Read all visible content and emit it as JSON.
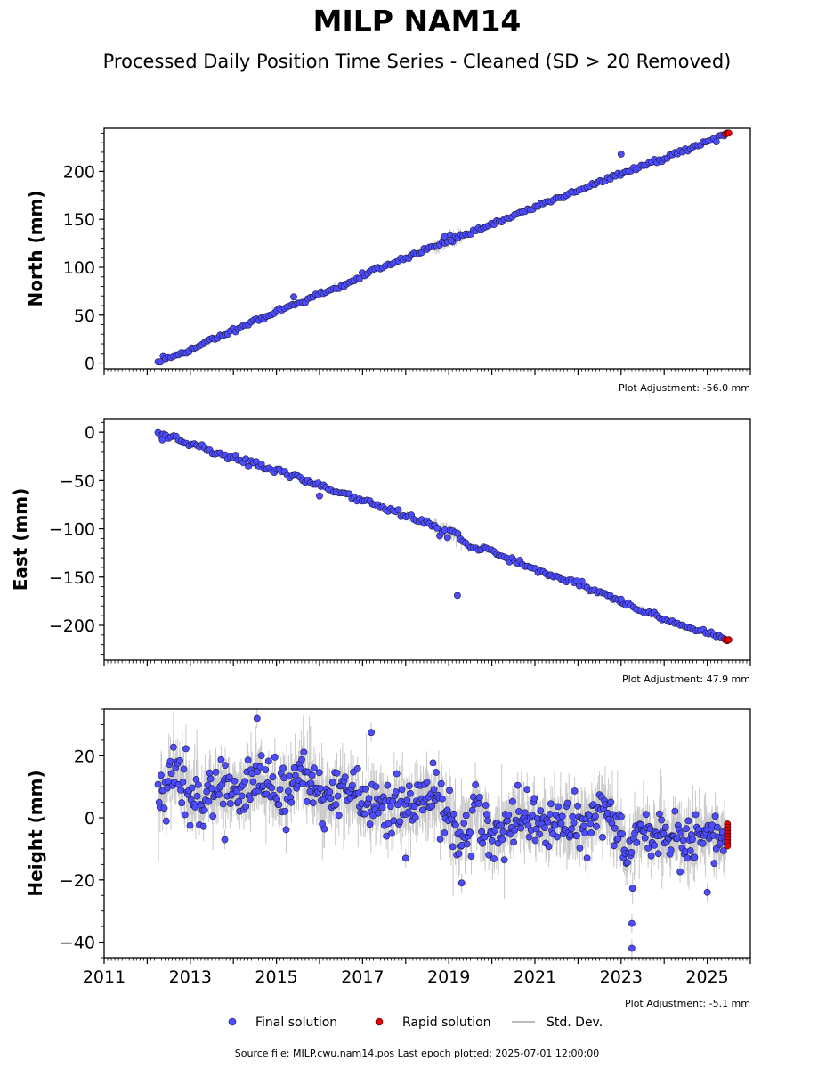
{
  "title": "MILP NAM14",
  "subtitle": "Processed Daily Position Time Series - Cleaned (SD > 20 Removed)",
  "footer": "Source file: MILP.cwu.nam14.pos  Last epoch plotted: 2025-07-01 12:00:00",
  "colors": {
    "final": "#4d4dff",
    "final_edge": "#1a1a40",
    "rapid": "#e60000",
    "sd": "#9a9a9a"
  },
  "legend": [
    {
      "label": "Final solution",
      "marker": "dot",
      "color": "#4d4dff"
    },
    {
      "label": "Rapid solution",
      "marker": "dot",
      "color": "#e60000"
    },
    {
      "label": "Std. Dev.",
      "marker": "line",
      "color": "#bbbbbb"
    }
  ],
  "chart_data": [
    {
      "type": "scatter",
      "ylabel": "North (mm)",
      "adjustment": "Plot Adjustment: -56.0 mm",
      "xlim": [
        2011.0,
        2026.0
      ],
      "ylim": [
        -6,
        245
      ],
      "yticks": [
        0,
        50,
        100,
        150,
        200
      ],
      "start": 2012.25,
      "end": 2025.5,
      "series": [
        {
          "label": "Final solution",
          "trend": [
            [
              2012.25,
              0
            ],
            [
              2014.0,
              34
            ],
            [
              2016.0,
              72
            ],
            [
              2018.0,
              110
            ],
            [
              2020.0,
              145
            ],
            [
              2022.0,
              180
            ],
            [
              2024.0,
              214
            ],
            [
              2025.4,
              238
            ]
          ],
          "scatter_sd": 1.3,
          "outliers": [
            [
              2023.0,
              218
            ],
            [
              2015.4,
              69
            ],
            [
              2018.9,
              132
            ],
            [
              2019.05,
              128
            ]
          ]
        },
        {
          "label": "Rapid solution",
          "points": [
            [
              2025.42,
              239
            ],
            [
              2025.46,
              240
            ],
            [
              2025.5,
              240
            ]
          ]
        }
      ]
    },
    {
      "type": "scatter",
      "ylabel": "East (mm)",
      "adjustment": "Plot Adjustment: 47.9 mm",
      "xlim": [
        2011.0,
        2026.0
      ],
      "ylim": [
        -236,
        14
      ],
      "yticks": [
        0,
        -50,
        -100,
        -150,
        -200
      ],
      "start": 2012.25,
      "end": 2025.5,
      "series": [
        {
          "label": "Final solution",
          "trend": [
            [
              2012.25,
              0
            ],
            [
              2013.0,
              -13
            ],
            [
              2014.0,
              -27
            ],
            [
              2015.0,
              -40
            ],
            [
              2016.0,
              -55
            ],
            [
              2017.0,
              -70
            ],
            [
              2018.0,
              -87
            ],
            [
              2018.75,
              -98
            ],
            [
              2019.5,
              -118
            ],
            [
              2020.0,
              -123
            ],
            [
              2021.0,
              -142
            ],
            [
              2022.0,
              -157
            ],
            [
              2023.0,
              -176
            ],
            [
              2024.0,
              -193
            ],
            [
              2025.4,
              -214
            ]
          ],
          "scatter_sd": 1.5,
          "outliers": [
            [
              2019.2,
              -169
            ],
            [
              2012.35,
              -8
            ],
            [
              2016.0,
              -66
            ],
            [
              2023.0,
              -173
            ]
          ]
        },
        {
          "label": "Rapid solution",
          "points": [
            [
              2025.42,
              -215
            ],
            [
              2025.46,
              -216
            ],
            [
              2025.5,
              -215
            ]
          ]
        }
      ]
    },
    {
      "type": "scatter",
      "ylabel": "Height (mm)",
      "adjustment": "Plot Adjustment: -5.1 mm",
      "xlim": [
        2011.0,
        2026.0
      ],
      "ylim": [
        -45,
        35
      ],
      "yticks": [
        20,
        0,
        -20,
        -40
      ],
      "xticks": [
        2011,
        2013,
        2015,
        2017,
        2019,
        2021,
        2023,
        2025
      ],
      "start": 2012.25,
      "end": 2025.5,
      "series": [
        {
          "label": "Final solution",
          "trend": [
            [
              2012.25,
              5
            ],
            [
              2012.7,
              13
            ],
            [
              2013.2,
              5
            ],
            [
              2013.6,
              10
            ],
            [
              2014.1,
              8
            ],
            [
              2014.6,
              14
            ],
            [
              2015.1,
              7
            ],
            [
              2015.6,
              17
            ],
            [
              2016.1,
              5
            ],
            [
              2016.6,
              9
            ],
            [
              2017.1,
              5
            ],
            [
              2017.6,
              3
            ],
            [
              2018.1,
              5
            ],
            [
              2018.7,
              8
            ],
            [
              2019.2,
              -6
            ],
            [
              2019.6,
              2
            ],
            [
              2020.1,
              -6
            ],
            [
              2020.6,
              2
            ],
            [
              2021.1,
              -3
            ],
            [
              2021.6,
              -1
            ],
            [
              2022.1,
              -2
            ],
            [
              2022.6,
              5
            ],
            [
              2023.1,
              -10
            ],
            [
              2023.5,
              -4
            ],
            [
              2024.0,
              -6
            ],
            [
              2024.5,
              -8
            ],
            [
              2025.0,
              -5
            ],
            [
              2025.4,
              -6
            ]
          ],
          "scatter_sd": 4.5,
          "outliers": [
            [
              2014.55,
              32
            ],
            [
              2017.2,
              27.5
            ],
            [
              2023.25,
              -34
            ],
            [
              2023.25,
              -42
            ],
            [
              2019.3,
              -21
            ],
            [
              2025.0,
              -24
            ],
            [
              2018.0,
              -13
            ],
            [
              2013.8,
              -7
            ]
          ]
        },
        {
          "label": "Rapid solution",
          "points": [
            [
              2025.47,
              -2
            ],
            [
              2025.47,
              -3
            ],
            [
              2025.47,
              -4
            ],
            [
              2025.47,
              -5
            ],
            [
              2025.47,
              -6
            ],
            [
              2025.47,
              -7
            ],
            [
              2025.47,
              -8
            ],
            [
              2025.47,
              -9
            ]
          ]
        }
      ]
    }
  ]
}
